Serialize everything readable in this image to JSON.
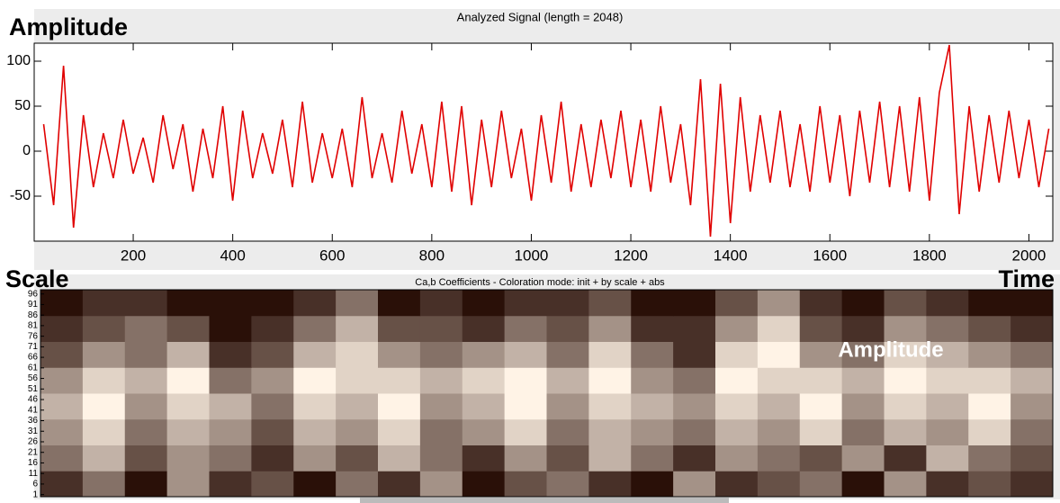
{
  "chart_data": [
    {
      "type": "line",
      "title": "Analyzed Signal  (length = 2048)",
      "y_label": "Amplitude",
      "color": "#e00000",
      "x": [
        20,
        40,
        60,
        80,
        100,
        120,
        140,
        160,
        180,
        200,
        220,
        240,
        260,
        280,
        300,
        320,
        340,
        360,
        380,
        400,
        420,
        440,
        460,
        480,
        500,
        520,
        540,
        560,
        580,
        600,
        620,
        640,
        660,
        680,
        700,
        720,
        740,
        760,
        780,
        800,
        820,
        840,
        860,
        880,
        900,
        920,
        940,
        960,
        980,
        1000,
        1020,
        1040,
        1060,
        1080,
        1100,
        1120,
        1140,
        1160,
        1180,
        1200,
        1220,
        1240,
        1260,
        1280,
        1300,
        1320,
        1340,
        1360,
        1380,
        1400,
        1420,
        1440,
        1460,
        1480,
        1500,
        1520,
        1540,
        1560,
        1580,
        1600,
        1620,
        1640,
        1660,
        1680,
        1700,
        1720,
        1740,
        1760,
        1780,
        1800,
        1820,
        1840,
        1860,
        1880,
        1900,
        1920,
        1940,
        1960,
        1980,
        2000,
        2020,
        2040
      ],
      "values": [
        30,
        -60,
        95,
        -85,
        40,
        -40,
        20,
        -30,
        35,
        -25,
        15,
        -35,
        40,
        -20,
        30,
        -45,
        25,
        -30,
        50,
        -55,
        45,
        -30,
        20,
        -25,
        35,
        -40,
        55,
        -35,
        20,
        -30,
        25,
        -40,
        60,
        -30,
        20,
        -35,
        45,
        -25,
        30,
        -40,
        55,
        -45,
        50,
        -60,
        35,
        -40,
        45,
        -30,
        25,
        -55,
        40,
        -35,
        55,
        -45,
        30,
        -40,
        35,
        -30,
        45,
        -40,
        35,
        -45,
        50,
        -35,
        30,
        -60,
        80,
        -95,
        75,
        -80,
        60,
        -45,
        40,
        -35,
        45,
        -40,
        30,
        -45,
        50,
        -35,
        40,
        -50,
        45,
        -35,
        55,
        -40,
        50,
        -45,
        60,
        -55,
        65,
        118,
        -70,
        50,
        -45,
        40,
        -35,
        45,
        -30,
        35,
        -40,
        25
      ],
      "xlim": [
        1,
        2048
      ],
      "xticks": [
        200,
        400,
        600,
        800,
        1000,
        1200,
        1400,
        1600,
        1800,
        2000
      ],
      "ylim": [
        -100,
        120
      ],
      "yticks": [
        100,
        50,
        0,
        -50
      ]
    },
    {
      "type": "heatmap",
      "title": "Ca,b Coefficients - Coloration mode: init + by scale + abs",
      "y_label": "Scale",
      "x_label": "Time",
      "annotation": "Amplitude",
      "colors": [
        "#2a1008",
        "#fff3e6"
      ],
      "ylim": [
        0,
        98
      ],
      "yticks": [
        96,
        91,
        86,
        81,
        76,
        71,
        66,
        61,
        56,
        51,
        46,
        41,
        36,
        31,
        26,
        21,
        16,
        11,
        6,
        1
      ],
      "values": [
        [
          3,
          5,
          2,
          6,
          3,
          4,
          2,
          5,
          3,
          6,
          2,
          4,
          5,
          3,
          2,
          6,
          3,
          4,
          5,
          2,
          6,
          3,
          4,
          3
        ],
        [
          5,
          7,
          4,
          6,
          5,
          3,
          6,
          4,
          7,
          5,
          3,
          6,
          4,
          7,
          5,
          3,
          6,
          5,
          4,
          6,
          3,
          7,
          5,
          4
        ],
        [
          6,
          8,
          5,
          7,
          6,
          4,
          7,
          6,
          8,
          5,
          6,
          8,
          5,
          7,
          6,
          5,
          7,
          6,
          8,
          5,
          7,
          6,
          8,
          5
        ],
        [
          7,
          9,
          6,
          8,
          7,
          5,
          8,
          7,
          9,
          6,
          7,
          9,
          6,
          8,
          7,
          6,
          8,
          7,
          9,
          6,
          8,
          7,
          9,
          6
        ],
        [
          6,
          8,
          7,
          9,
          5,
          6,
          9,
          8,
          8,
          7,
          8,
          9,
          7,
          9,
          6,
          5,
          9,
          8,
          8,
          7,
          9,
          8,
          8,
          7
        ],
        [
          4,
          6,
          5,
          7,
          3,
          4,
          7,
          8,
          6,
          5,
          6,
          7,
          5,
          8,
          5,
          3,
          8,
          9,
          6,
          5,
          8,
          7,
          6,
          5
        ],
        [
          3,
          4,
          5,
          4,
          2,
          3,
          5,
          7,
          4,
          4,
          3,
          5,
          4,
          6,
          3,
          3,
          6,
          8,
          4,
          3,
          6,
          5,
          4,
          3
        ],
        [
          2,
          3,
          3,
          2,
          2,
          2,
          3,
          5,
          2,
          3,
          2,
          3,
          3,
          4,
          2,
          2,
          4,
          6,
          3,
          2,
          4,
          3,
          2,
          2
        ]
      ]
    }
  ]
}
